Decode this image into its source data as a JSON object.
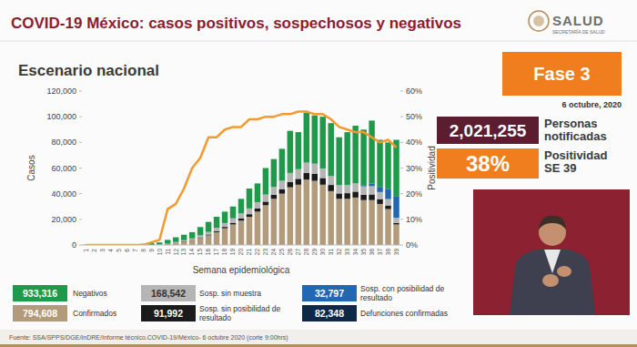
{
  "header": {
    "title": "COVID-19 México: casos positivos, sospechosos y negativos",
    "logo": "SALUD",
    "logo_subtitle": "SECRETARÍA DE SALUD"
  },
  "phase": "Fase 3",
  "date": "6 octubre, 2020",
  "notified": {
    "value": 2021255,
    "label": "2,021,255",
    "caption": [
      "Personas",
      "notificadas"
    ]
  },
  "positivity": {
    "value": 38,
    "label": "38%",
    "caption": [
      "Positividad",
      "SE 39"
    ]
  },
  "chart_data": {
    "type": "bar",
    "title": "Escenario nacional",
    "stacked": true,
    "grid": false,
    "x_label": "Semana epidemiológica",
    "y_label": "Casos",
    "categories": [
      "1",
      "2",
      "3",
      "4",
      "5",
      "6",
      "7",
      "8",
      "9",
      "10",
      "11",
      "12",
      "13",
      "14",
      "15",
      "16",
      "17",
      "18",
      "19",
      "20",
      "21",
      "22",
      "23",
      "24",
      "25",
      "26",
      "27",
      "28",
      "29",
      "30",
      "31",
      "32",
      "33",
      "34",
      "35",
      "36",
      "37",
      "38",
      "39"
    ],
    "ylim": [
      0,
      120000
    ],
    "yticks": [
      0,
      {
        "value": 20000,
        "label": "20,000"
      },
      {
        "value": 40000,
        "label": "40,000"
      },
      {
        "value": 60000,
        "label": "60,000"
      },
      {
        "value": 80000,
        "label": "80,000"
      },
      {
        "value": 100000,
        "label": "100,000"
      },
      {
        "value": 120000,
        "label": "120,000"
      }
    ],
    "y2lim": [
      0,
      60
    ],
    "y2ticks": [
      {
        "value": 0,
        "label": "0%"
      },
      {
        "value": 10,
        "label": "10%"
      },
      {
        "value": 20,
        "label": "20%"
      },
      {
        "value": 30,
        "label": "30%"
      },
      {
        "value": 40,
        "label": "40%"
      },
      {
        "value": 50,
        "label": "50%"
      },
      {
        "value": 60,
        "label": "60%"
      }
    ],
    "series": [
      {
        "name": "Confirmados",
        "type": "bar",
        "color": "#b29b7a",
        "total": 794608,
        "total_label": "794,608",
        "values": [
          0,
          0,
          0,
          0,
          0,
          0,
          0,
          0,
          10,
          200,
          600,
          1500,
          2500,
          3500,
          5500,
          7500,
          10000,
          13000,
          16000,
          19000,
          22000,
          26000,
          31000,
          36000,
          40000,
          45000,
          47000,
          51000,
          50000,
          47000,
          42000,
          36000,
          36000,
          37000,
          35000,
          35000,
          32000,
          28000,
          16000
        ]
      },
      {
        "name": "Sosp. sin posibilidad de resultado",
        "type": "bar",
        "color": "#1b1b1b",
        "total": 91992,
        "total_label": "91,992",
        "values": [
          0,
          0,
          0,
          0,
          0,
          0,
          0,
          0,
          0,
          50,
          100,
          200,
          300,
          400,
          500,
          700,
          900,
          1100,
          1300,
          1600,
          2000,
          2400,
          2800,
          3200,
          3600,
          4200,
          4600,
          5200,
          5400,
          5200,
          4800,
          4200,
          4400,
          4600,
          4200,
          4400,
          3800,
          2800,
          1200
        ]
      },
      {
        "name": "Sosp. sin muestra",
        "type": "bar",
        "color": "#b5b5b5",
        "total": 168542,
        "total_label": "168,542",
        "values": [
          0,
          0,
          0,
          0,
          0,
          0,
          0,
          0,
          0,
          100,
          300,
          600,
          900,
          1200,
          1500,
          2000,
          2500,
          3000,
          3500,
          4000,
          4500,
          5000,
          5500,
          6000,
          6500,
          7000,
          7500,
          8000,
          8000,
          7500,
          7000,
          6500,
          6500,
          6500,
          6500,
          6500,
          5500,
          5000,
          4000
        ]
      },
      {
        "name": "Sosp. con posibilidad de resultado",
        "type": "bar",
        "color": "#2367b2",
        "total": 32797,
        "total_label": "32,797",
        "values": [
          0,
          0,
          0,
          0,
          0,
          0,
          0,
          0,
          0,
          0,
          0,
          0,
          0,
          0,
          0,
          0,
          0,
          0,
          0,
          0,
          0,
          0,
          0,
          0,
          0,
          0,
          0,
          0,
          0,
          0,
          0,
          0,
          0,
          0,
          1000,
          2000,
          4000,
          8000,
          17000
        ]
      },
      {
        "name": "Negativos",
        "type": "bar",
        "color": "#1f9a4b",
        "total": 933316,
        "total_label": "933,316",
        "values": [
          300,
          400,
          400,
          500,
          500,
          600,
          700,
          900,
          1500,
          1650,
          3000,
          3700,
          4300,
          4900,
          6500,
          7800,
          8600,
          8900,
          9200,
          11400,
          15500,
          14600,
          20700,
          21800,
          24900,
          32800,
          28900,
          38800,
          37600,
          40300,
          41200,
          37300,
          41100,
          44900,
          43300,
          49100,
          36700,
          36200,
          43800
        ]
      },
      {
        "name": "Positividad",
        "type": "line",
        "axis": "y2",
        "color": "#f39a2e",
        "values": [
          0,
          0,
          0,
          0,
          0,
          0,
          0,
          0,
          1,
          2,
          14,
          16,
          22,
          30,
          34,
          42,
          42,
          45,
          46,
          46,
          49,
          49,
          50,
          50,
          51,
          51,
          52,
          52,
          51,
          51,
          49,
          46,
          45,
          44,
          44,
          42,
          40,
          41,
          38
        ]
      }
    ],
    "deaths": {
      "name": "Defunciones confirmadas",
      "color": "#0f2847",
      "total": 82348,
      "total_label": "82,348"
    }
  },
  "source": "Fuente: SSA/SPPS/DGE/InDRE/Informe técnico.COVID-19/México- 6 octubre 2020 (corte 9:00hrs)"
}
